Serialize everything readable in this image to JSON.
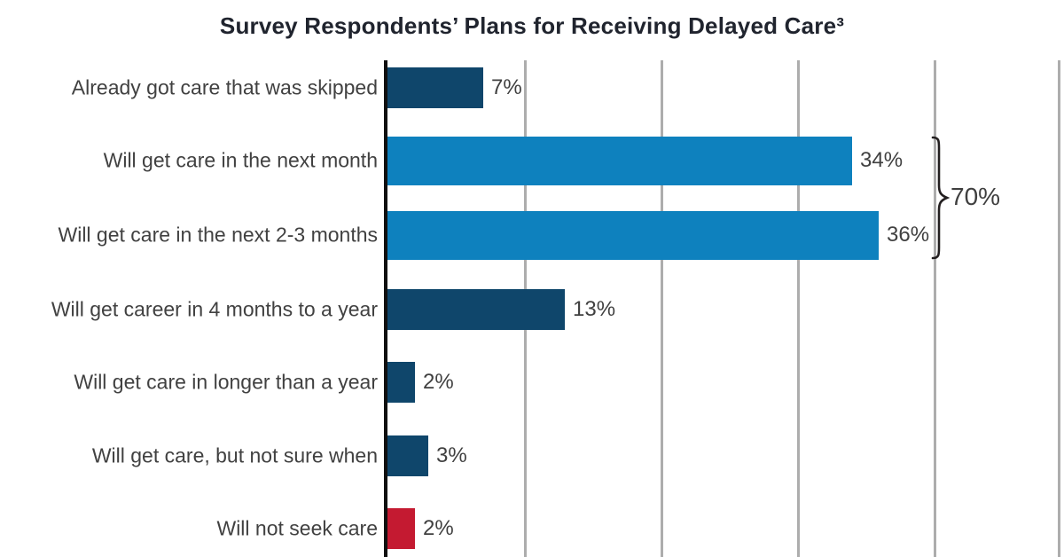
{
  "title": "Survey Respondents’ Plans for Receiving Delayed Care³",
  "chart_data": {
    "type": "bar",
    "orientation": "horizontal",
    "title": "Survey Respondents’ Plans for Receiving Delayed Care³",
    "categories": [
      "Already got care that was skipped",
      "Will get care in the next month",
      "Will get care in the next 2-3 months",
      "Will get career in 4 months to a year",
      "Will get care in longer than a year",
      "Will get care, but not sure when",
      "Will not seek care"
    ],
    "values": [
      7,
      34,
      36,
      13,
      2,
      3,
      2
    ],
    "value_labels": [
      "7%",
      "34%",
      "36%",
      "13%",
      "2%",
      "3%",
      "2%"
    ],
    "bar_colors": [
      "#0f466b",
      "#0e81be",
      "#0e81be",
      "#0f466b",
      "#0f466b",
      "#0f466b",
      "#c41a31"
    ],
    "annotation": {
      "label": "70%",
      "groups": [
        "Will get care in the next month",
        "Will get care in the next 2-3 months"
      ]
    },
    "axis": {
      "xmin": 0,
      "xmax": 50,
      "gridline_step": 10,
      "grid": true,
      "tick_labels_visible": false
    },
    "legend": "none"
  },
  "colors": {
    "navy": "#0f466b",
    "blue": "#0e81be",
    "red": "#c41a31",
    "gridline": "#adadad",
    "axis": "#101010",
    "label_text": "#414141",
    "title_text": "#20242e"
  }
}
